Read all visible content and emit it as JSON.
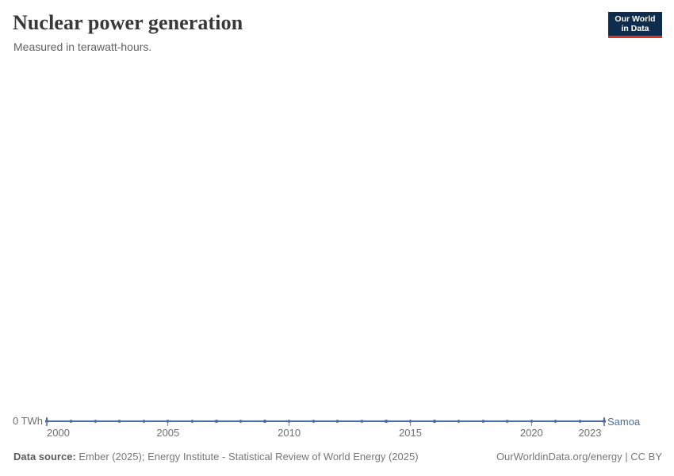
{
  "header": {
    "title": "Nuclear power generation",
    "subtitle": "Measured in terawatt-hours."
  },
  "logo": {
    "line1": "Our World",
    "line2": "in Data",
    "bg_color": "#0e2d4e",
    "accent_color": "#dc3224"
  },
  "chart_data": {
    "type": "line",
    "title": "Nuclear power generation",
    "subtitle": "Measured in terawatt-hours.",
    "unit": "TWh",
    "x": [
      2000,
      2001,
      2002,
      2003,
      2004,
      2005,
      2006,
      2007,
      2008,
      2009,
      2010,
      2011,
      2012,
      2013,
      2014,
      2015,
      2016,
      2017,
      2018,
      2019,
      2020,
      2021,
      2022,
      2023
    ],
    "series": [
      {
        "name": "Samoa",
        "color": "#4c6bac",
        "values": [
          0,
          0,
          0,
          0,
          0,
          0,
          0,
          0,
          0,
          0,
          0,
          0,
          0,
          0,
          0,
          0,
          0,
          0,
          0,
          0,
          0,
          0,
          0,
          0
        ]
      }
    ],
    "x_ticks": [
      2000,
      2005,
      2010,
      2015,
      2020,
      2023
    ],
    "xlim": [
      2000,
      2023
    ],
    "y_tick_label": "0 TWh",
    "ylim": [
      0,
      0
    ],
    "grid": false,
    "legend_position": "line-end",
    "markers": true
  },
  "axis": {
    "y_zero_label": "0 TWh"
  },
  "footer": {
    "source_label": "Data source:",
    "source_text": " Ember (2025); Energy Institute - Statistical Review of World Energy (2025)",
    "link_text": "OurWorldinData.org/energy | CC BY"
  }
}
